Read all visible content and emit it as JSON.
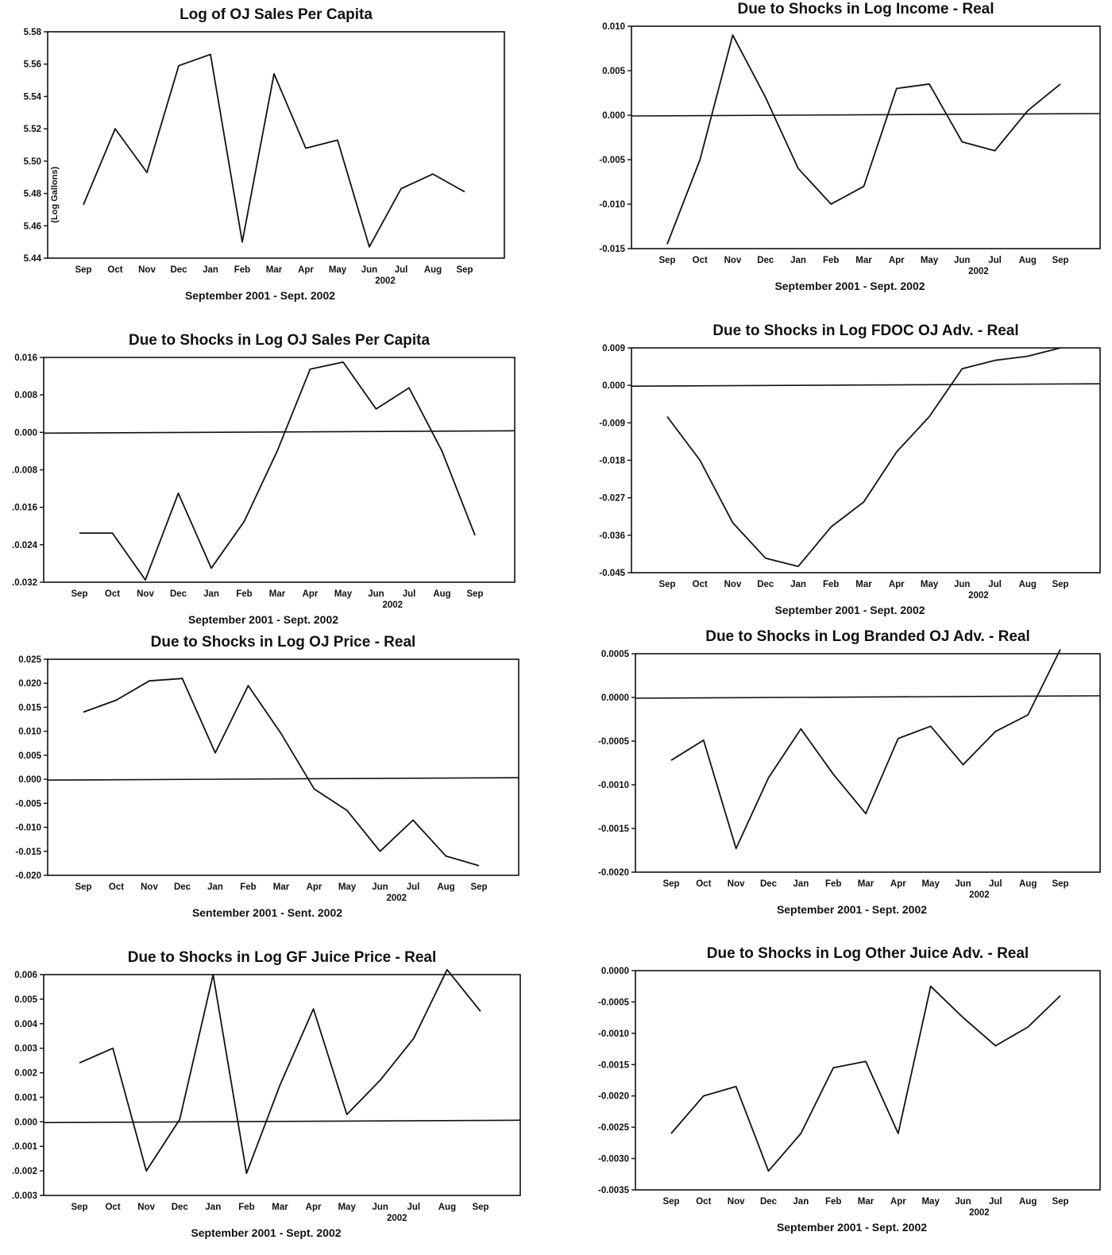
{
  "chart_data": [
    {
      "type": "line",
      "title": "Log of OJ Sales Per Capita",
      "xlabel": "September 2001 - Sept. 2002",
      "ylabel": "(Log Gallons)",
      "year_marker": "2002",
      "categories": [
        "Sep",
        "Oct",
        "Nov",
        "Dec",
        "Jan",
        "Feb",
        "Mar",
        "Apr",
        "May",
        "Jun",
        "Jul",
        "Aug",
        "Sep"
      ],
      "ylim": [
        5.44,
        5.58
      ],
      "yticks": [
        "5.58",
        "5.56",
        "5.54",
        "5.52",
        "5.50",
        "5.48",
        "5.46",
        "5.44"
      ],
      "zero_line": false,
      "values": [
        5.473,
        5.52,
        5.493,
        5.559,
        5.566,
        5.45,
        5.554,
        5.508,
        5.513,
        5.447,
        5.483,
        5.492,
        5.481
      ]
    },
    {
      "type": "line",
      "title": "Due to Shocks in Log Income - Real",
      "xlabel": "September 2001 - Sept. 2002",
      "year_marker": "2002",
      "categories": [
        "Sep",
        "Oct",
        "Nov",
        "Dec",
        "Jan",
        "Feb",
        "Mar",
        "Apr",
        "May",
        "Jun",
        "Jul",
        "Aug",
        "Sep"
      ],
      "ylim": [
        -0.015,
        0.01
      ],
      "yticks": [
        "0.010",
        "0.005",
        "0.000",
        "-0.005",
        "-0.010",
        "-0.015"
      ],
      "zero_line": true,
      "values": [
        -0.0145,
        -0.005,
        0.009,
        0.002,
        -0.006,
        -0.01,
        -0.008,
        0.003,
        0.0035,
        -0.003,
        -0.004,
        0.0005,
        0.0035
      ]
    },
    {
      "type": "line",
      "title": "Due to Shocks in Log OJ Sales Per Capita",
      "xlabel": "September 2001 - Sept. 2002",
      "year_marker": "2002",
      "categories": [
        "Sep",
        "Oct",
        "Nov",
        "Dec",
        "Jan",
        "Feb",
        "Mar",
        "Apr",
        "May",
        "Jun",
        "Jul",
        "Aug",
        "Sep"
      ],
      "ylim": [
        -0.032,
        0.016
      ],
      "yticks": [
        "0.016",
        "0.008",
        "0.000",
        ".0.008",
        ".0.016",
        ".0.024",
        ".0.032"
      ],
      "zero_line": true,
      "values": [
        -0.0215,
        -0.0215,
        -0.0315,
        -0.013,
        -0.029,
        -0.019,
        -0.004,
        0.0135,
        0.015,
        0.005,
        0.0095,
        -0.004,
        -0.022
      ]
    },
    {
      "type": "line",
      "title": "Due to Shocks in Log FDOC OJ Adv. - Real",
      "xlabel": "September 2001 - Sept. 2002",
      "year_marker": "2002",
      "categories": [
        "Sep",
        "Oct",
        "Nov",
        "Dec",
        "Jan",
        "Feb",
        "Mar",
        "Apr",
        "May",
        "Jun",
        "Jul",
        "Aug",
        "Sep"
      ],
      "ylim": [
        -0.045,
        0.009
      ],
      "yticks": [
        "0.009",
        "0.000",
        "-0.009",
        "-0.018",
        "-0.027",
        "-0.036",
        "-0.045"
      ],
      "zero_line": true,
      "values": [
        -0.0075,
        -0.018,
        -0.033,
        -0.0415,
        -0.0435,
        -0.034,
        -0.028,
        -0.016,
        -0.0075,
        0.004,
        0.006,
        0.007,
        0.009
      ]
    },
    {
      "type": "line",
      "title": "Due to Shocks in Log OJ Price - Real",
      "xlabel": "Sentember 2001 - Sent. 2002",
      "year_marker": "2002",
      "categories": [
        "Sep",
        "Oct",
        "Nov",
        "Dec",
        "Jan",
        "Feb",
        "Mar",
        "Apr",
        "May",
        "Jun",
        "Jul",
        "Aug",
        "Sep"
      ],
      "ylim": [
        -0.02,
        0.025
      ],
      "yticks": [
        "0.025",
        "0.020",
        "0.015",
        "0.010",
        "0.005",
        "0.000",
        "-0.005",
        "-0.010",
        "-0.015",
        "-0.020"
      ],
      "zero_line": true,
      "values": [
        0.014,
        0.0165,
        0.0205,
        0.021,
        0.0055,
        0.0195,
        0.0095,
        -0.002,
        -0.0065,
        -0.015,
        -0.0085,
        -0.016,
        -0.018
      ]
    },
    {
      "type": "line",
      "title": "Due to Shocks in Log Branded OJ Adv. - Real",
      "xlabel": "September 2001 - Sept. 2002",
      "year_marker": "2002",
      "categories": [
        "Sep",
        "Oct",
        "Nov",
        "Dec",
        "Jan",
        "Feb",
        "Mar",
        "Apr",
        "May",
        "Jun",
        "Jul",
        "Aug",
        "Sep"
      ],
      "ylim": [
        -0.002,
        0.0005
      ],
      "yticks": [
        "0.0005",
        "0.0000",
        "-0.0005",
        "-0.0010",
        "-0.0015",
        "-0.0020"
      ],
      "zero_line": true,
      "values": [
        -0.00072,
        -0.00049,
        -0.00173,
        -0.00092,
        -0.00036,
        -0.00088,
        -0.00133,
        -0.00047,
        -0.00033,
        -0.00077,
        -0.00039,
        -0.0002,
        0.00055
      ]
    },
    {
      "type": "line",
      "title": "Due to Shocks in Log GF Juice Price - Real",
      "xlabel": "September 2001 - Sept. 2002",
      "year_marker": "2002",
      "categories": [
        "Sep",
        "Oct",
        "Nov",
        "Dec",
        "Jan",
        "Feb",
        "Mar",
        "Apr",
        "May",
        "Jun",
        "Jul",
        "Aug",
        "Sep"
      ],
      "ylim": [
        -0.003,
        0.006
      ],
      "yticks": [
        "0.006",
        "0.005",
        "0.004",
        "0.003",
        "0.002",
        "0.001",
        "0.000",
        ".0.001",
        ".0.002",
        ".0.003"
      ],
      "zero_line": true,
      "values": [
        0.0024,
        0.003,
        -0.002,
        0.0001,
        0.006,
        -0.0021,
        0.0015,
        0.0046,
        0.0003,
        0.0017,
        0.0034,
        0.0062,
        0.0045
      ]
    },
    {
      "type": "line",
      "title": "Due to Shocks in Log Other Juice Adv. - Real",
      "xlabel": "September 2001 - Sept. 2002",
      "year_marker": "2002",
      "categories": [
        "Sep",
        "Oct",
        "Nov",
        "Dec",
        "Jan",
        "Feb",
        "Mar",
        "Apr",
        "May",
        "Jun",
        "Jul",
        "Aug",
        "Sep"
      ],
      "ylim": [
        -0.0035,
        0.0
      ],
      "yticks": [
        "0.0000",
        "-0.0005",
        "-0.0010",
        "-0.0015",
        "-0.0020",
        "-0.0025",
        "-0.0030",
        "-0.0035"
      ],
      "zero_line": false,
      "values": [
        -0.0026,
        -0.002,
        -0.00185,
        -0.0032,
        -0.0026,
        -0.00155,
        -0.00145,
        -0.0026,
        -0.00025,
        -0.00075,
        -0.0012,
        -0.0009,
        -0.0004
      ]
    }
  ]
}
